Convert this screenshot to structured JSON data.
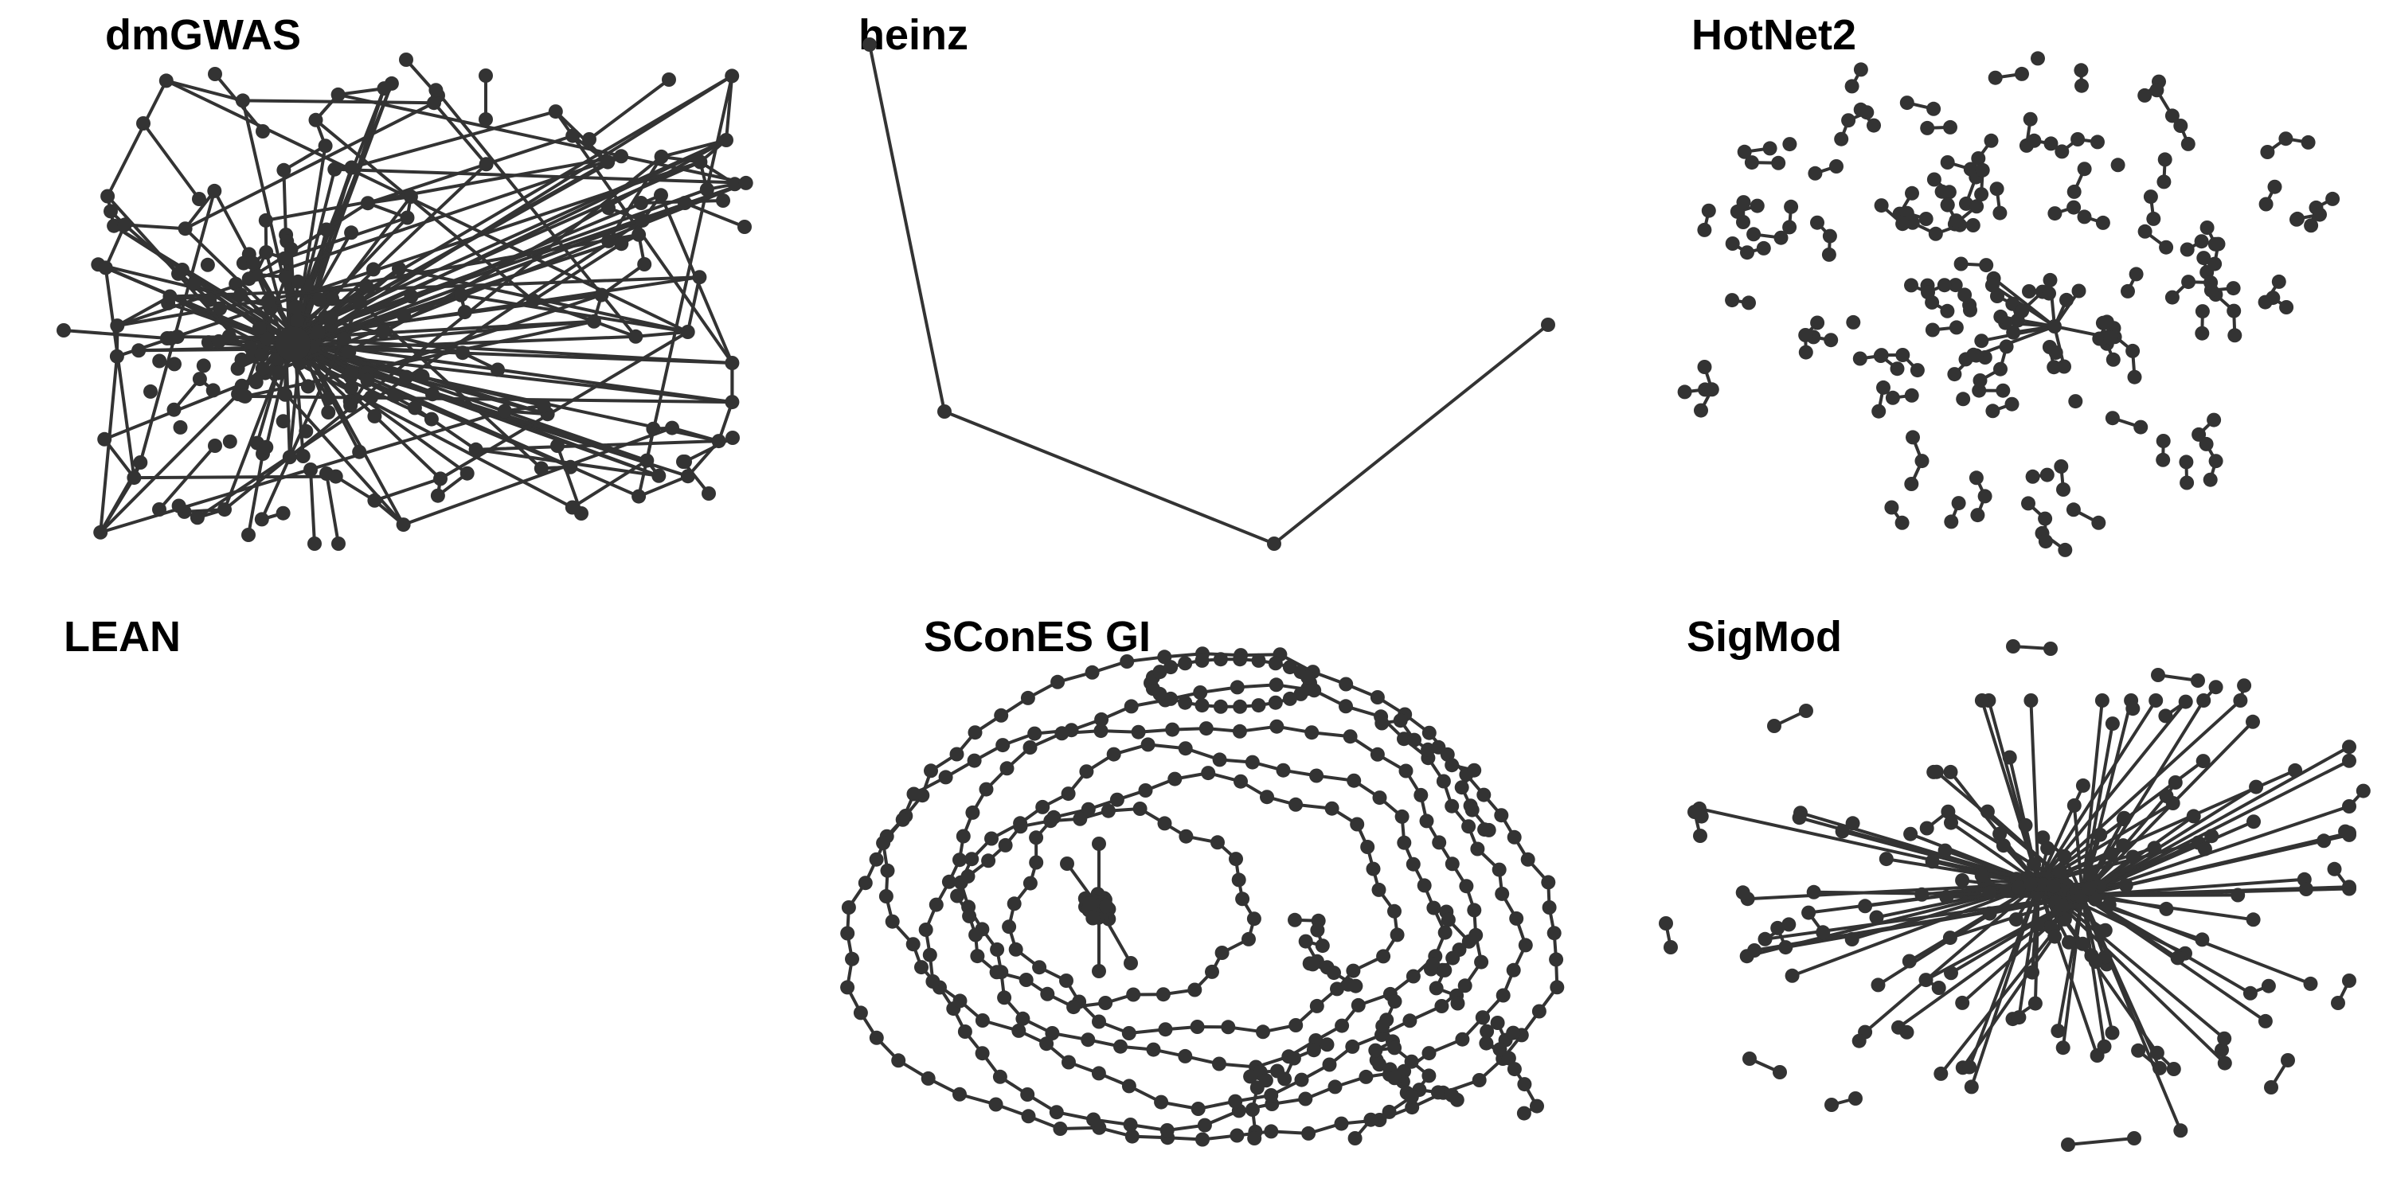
{
  "figure": {
    "panels": [
      {
        "id": "dmGWAS",
        "title": "dmGWAS"
      },
      {
        "id": "heinz",
        "title": "heinz"
      },
      {
        "id": "HotNet2",
        "title": "HotNet2"
      },
      {
        "id": "LEAN",
        "title": "LEAN"
      },
      {
        "id": "SConES_GI",
        "title": "SConES GI"
      },
      {
        "id": "SigMod",
        "title": "SigMod"
      }
    ]
  },
  "colors": {
    "node": "#333333",
    "edge": "#333333",
    "background": "#ffffff"
  }
}
